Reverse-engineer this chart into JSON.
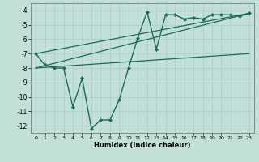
{
  "xlabel": "Humidex (Indice chaleur)",
  "background_color": "#c2e0d8",
  "line_color": "#1a6b5a",
  "xlim": [
    -0.5,
    23.5
  ],
  "ylim": [
    -12.5,
    -3.5
  ],
  "xticks": [
    0,
    1,
    2,
    3,
    4,
    5,
    6,
    7,
    8,
    9,
    10,
    11,
    12,
    13,
    14,
    15,
    16,
    17,
    18,
    19,
    20,
    21,
    22,
    23
  ],
  "yticks": [
    -4,
    -5,
    -6,
    -7,
    -8,
    -9,
    -10,
    -11,
    -12
  ],
  "grid_color": "#a8cec8",
  "main_series": {
    "x": [
      0,
      1,
      2,
      3,
      4,
      5,
      6,
      7,
      8,
      9,
      10,
      11,
      12,
      13,
      14,
      15,
      16,
      17,
      18,
      19,
      20,
      21,
      22,
      23
    ],
    "y": [
      -7,
      -7.8,
      -8,
      -8,
      -10.7,
      -8.7,
      -12.2,
      -11.6,
      -11.6,
      -10.2,
      -8,
      -5.9,
      -4.1,
      -6.7,
      -4.3,
      -4.3,
      -4.6,
      -4.5,
      -4.6,
      -4.3,
      -4.3,
      -4.3,
      -4.4,
      -4.2
    ],
    "marker": "D",
    "markersize": 2.0,
    "linewidth": 1.0
  },
  "reg_lines": [
    {
      "x": [
        0,
        23
      ],
      "y": [
        -7.0,
        -4.2
      ],
      "linewidth": 0.9
    },
    {
      "x": [
        0,
        23
      ],
      "y": [
        -8.0,
        -4.2
      ],
      "linewidth": 0.9
    },
    {
      "x": [
        0,
        23
      ],
      "y": [
        -8.0,
        -7.0
      ],
      "linewidth": 0.9
    }
  ]
}
